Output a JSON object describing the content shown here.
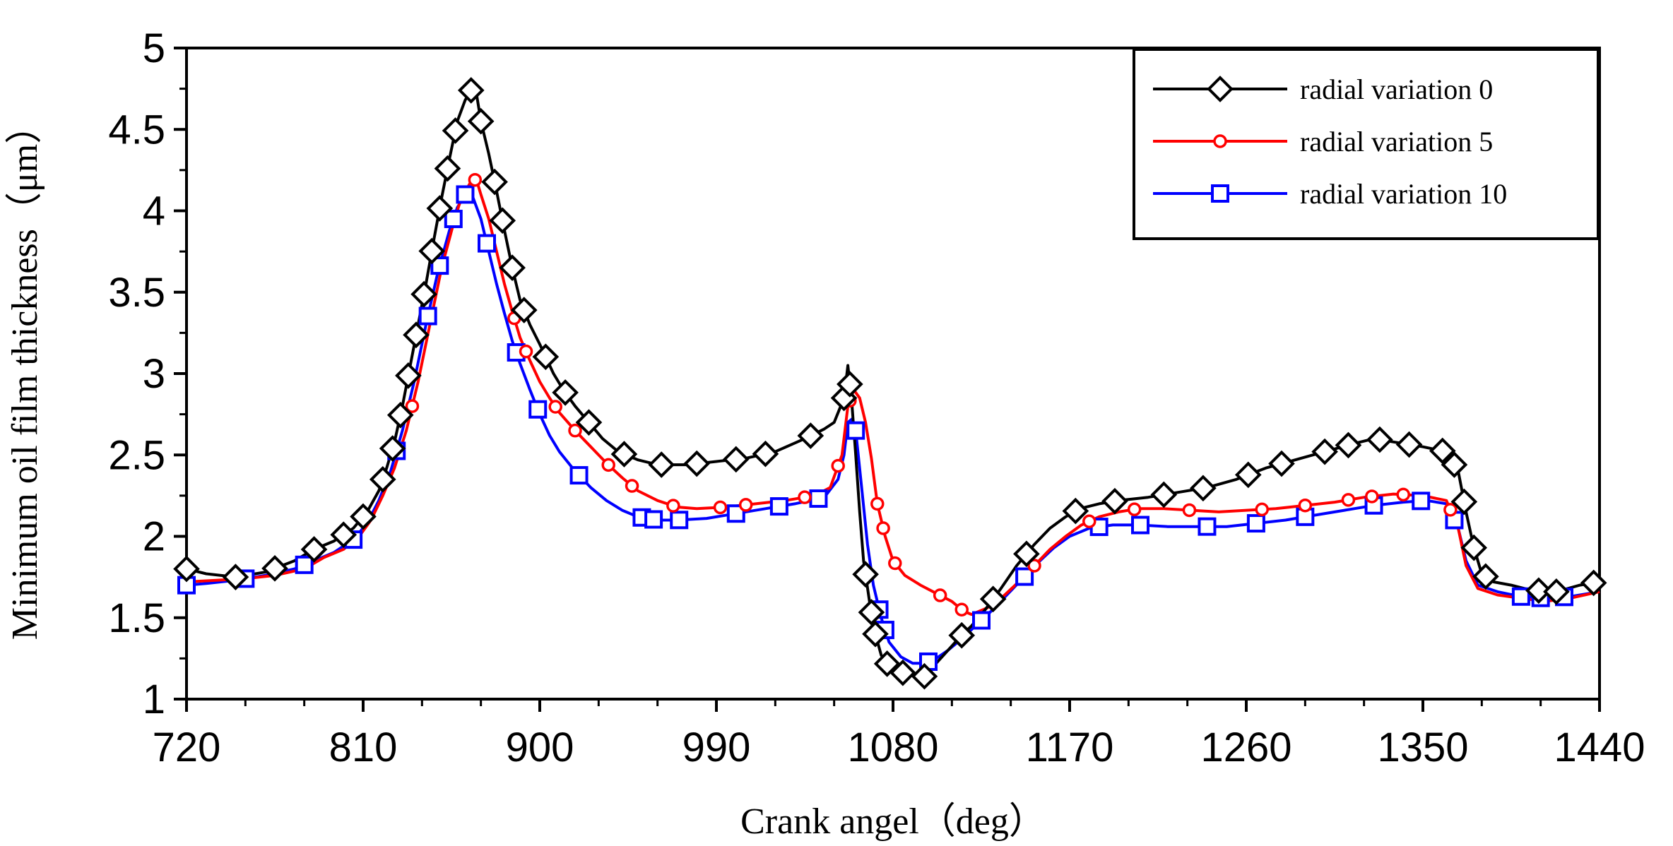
{
  "chart_data": {
    "type": "line",
    "title": "",
    "xlabel": "Crank angel（deg）",
    "ylabel": "Minimum oil film thickness（μm）",
    "xlim": [
      720,
      1440
    ],
    "ylim": [
      1,
      5
    ],
    "xticks": [
      720,
      810,
      900,
      990,
      1080,
      1170,
      1260,
      1350,
      1440
    ],
    "yticks": [
      1,
      1.5,
      2,
      2.5,
      3,
      3.5,
      4,
      4.5,
      5
    ],
    "xtick_labels": [
      "720",
      "810",
      "900",
      "990",
      "1080",
      "1170",
      "1260",
      "1350",
      "1440"
    ],
    "ytick_labels": [
      "1",
      "1.5",
      "2",
      "2.5",
      "3",
      "3.5",
      "4",
      "4.5",
      "5"
    ],
    "grid": false,
    "legend_position": "top-right",
    "series": [
      {
        "name": "radial variation 0",
        "color": "#000000",
        "marker": "diamond",
        "x": [
          720,
          730,
          745,
          760,
          775,
          785,
          795,
          805,
          812,
          818,
          822,
          826,
          830,
          834,
          838,
          842,
          846,
          850,
          854,
          858,
          862,
          866,
          868,
          870,
          874,
          878,
          882,
          886,
          890,
          895,
          900,
          907,
          912,
          918,
          925,
          932,
          940,
          950,
          960,
          975,
          990,
          1005,
          1020,
          1035,
          1045,
          1050,
          1055,
          1057,
          1059,
          1061,
          1063,
          1065,
          1068,
          1071,
          1074,
          1078,
          1083,
          1088,
          1094,
          1098,
          1102,
          1108,
          1114,
          1120,
          1127,
          1135,
          1143,
          1152,
          1160,
          1168,
          1175,
          1185,
          1195,
          1210,
          1225,
          1240,
          1255,
          1270,
          1285,
          1300,
          1315,
          1325,
          1335,
          1350,
          1362,
          1368,
          1372,
          1376,
          1380,
          1386,
          1395,
          1405,
          1418,
          1430,
          1440
        ],
        "values": [
          1.8,
          1.77,
          1.75,
          1.78,
          1.85,
          1.92,
          1.97,
          2.05,
          2.15,
          2.28,
          2.42,
          2.58,
          2.8,
          3.05,
          3.3,
          3.55,
          3.82,
          4.08,
          4.32,
          4.55,
          4.68,
          4.76,
          4.7,
          4.55,
          4.35,
          4.12,
          3.88,
          3.65,
          3.45,
          3.3,
          3.18,
          3.0,
          2.9,
          2.8,
          2.7,
          2.6,
          2.52,
          2.47,
          2.44,
          2.44,
          2.46,
          2.48,
          2.52,
          2.6,
          2.66,
          2.7,
          2.85,
          3.05,
          2.82,
          2.5,
          2.15,
          1.85,
          1.6,
          1.4,
          1.27,
          1.2,
          1.17,
          1.15,
          1.13,
          1.15,
          1.22,
          1.3,
          1.38,
          1.45,
          1.55,
          1.68,
          1.82,
          1.95,
          2.05,
          2.12,
          2.17,
          2.2,
          2.22,
          2.24,
          2.27,
          2.3,
          2.35,
          2.42,
          2.47,
          2.52,
          2.57,
          2.6,
          2.58,
          2.55,
          2.52,
          2.4,
          2.15,
          1.93,
          1.77,
          1.72,
          1.7,
          1.67,
          1.66,
          1.7,
          1.72
        ]
      },
      {
        "name": "radial variation 5",
        "color": "#ff0000",
        "marker": "circle",
        "x": [
          720,
          735,
          750,
          765,
          780,
          790,
          800,
          808,
          814,
          820,
          826,
          832,
          838,
          844,
          850,
          856,
          860,
          864,
          866,
          868,
          870,
          874,
          878,
          882,
          886,
          890,
          895,
          900,
          905,
          910,
          918,
          926,
          934,
          942,
          950,
          960,
          970,
          980,
          995,
          1010,
          1025,
          1040,
          1048,
          1054,
          1057,
          1060,
          1063,
          1066,
          1069,
          1072,
          1076,
          1080,
          1086,
          1094,
          1102,
          1110,
          1116,
          1120,
          1128,
          1136,
          1144,
          1152,
          1160,
          1168,
          1176,
          1185,
          1195,
          1205,
          1218,
          1232,
          1246,
          1260,
          1275,
          1290,
          1305,
          1320,
          1335,
          1350,
          1362,
          1368,
          1372,
          1378,
          1388,
          1400,
          1412,
          1425,
          1440
        ],
        "values": [
          1.72,
          1.73,
          1.74,
          1.76,
          1.8,
          1.87,
          1.92,
          2.0,
          2.1,
          2.25,
          2.42,
          2.65,
          2.95,
          3.3,
          3.65,
          3.92,
          4.08,
          4.16,
          4.2,
          4.18,
          4.1,
          3.95,
          3.75,
          3.55,
          3.38,
          3.22,
          3.08,
          2.95,
          2.85,
          2.76,
          2.65,
          2.55,
          2.45,
          2.36,
          2.28,
          2.22,
          2.18,
          2.17,
          2.18,
          2.2,
          2.22,
          2.25,
          2.3,
          2.5,
          2.8,
          2.9,
          2.85,
          2.7,
          2.48,
          2.2,
          2.0,
          1.85,
          1.76,
          1.7,
          1.65,
          1.6,
          1.54,
          1.52,
          1.56,
          1.63,
          1.72,
          1.82,
          1.92,
          2.0,
          2.07,
          2.12,
          2.15,
          2.17,
          2.17,
          2.16,
          2.15,
          2.16,
          2.17,
          2.19,
          2.21,
          2.24,
          2.26,
          2.25,
          2.22,
          2.05,
          1.82,
          1.68,
          1.64,
          1.62,
          1.6,
          1.62,
          1.66
        ]
      },
      {
        "name": "radial variation 10",
        "color": "#0000ff",
        "marker": "square",
        "x": [
          720,
          730,
          745,
          760,
          775,
          785,
          795,
          805,
          812,
          818,
          824,
          830,
          836,
          842,
          848,
          854,
          858,
          862,
          864,
          866,
          870,
          874,
          878,
          882,
          886,
          890,
          895,
          900,
          905,
          910,
          918,
          926,
          934,
          942,
          950,
          960,
          970,
          985,
          1000,
          1015,
          1030,
          1045,
          1052,
          1055,
          1057,
          1059,
          1061,
          1064,
          1067,
          1070,
          1074,
          1078,
          1084,
          1090,
          1096,
          1102,
          1108,
          1115,
          1122,
          1130,
          1138,
          1146,
          1154,
          1162,
          1170,
          1180,
          1192,
          1205,
          1220,
          1235,
          1250,
          1265,
          1280,
          1295,
          1310,
          1325,
          1340,
          1352,
          1362,
          1368,
          1372,
          1378,
          1388,
          1400,
          1412,
          1425,
          1440
        ],
        "values": [
          1.7,
          1.71,
          1.73,
          1.76,
          1.8,
          1.85,
          1.9,
          1.98,
          2.08,
          2.22,
          2.4,
          2.65,
          2.95,
          3.3,
          3.62,
          3.88,
          4.02,
          4.1,
          4.11,
          4.08,
          3.95,
          3.75,
          3.55,
          3.37,
          3.2,
          3.06,
          2.9,
          2.75,
          2.62,
          2.52,
          2.4,
          2.3,
          2.22,
          2.16,
          2.12,
          2.1,
          2.1,
          2.11,
          2.14,
          2.17,
          2.2,
          2.24,
          2.35,
          2.5,
          2.7,
          2.72,
          2.65,
          2.3,
          1.95,
          1.7,
          1.5,
          1.35,
          1.26,
          1.22,
          1.22,
          1.25,
          1.3,
          1.37,
          1.45,
          1.54,
          1.64,
          1.74,
          1.84,
          1.93,
          2.0,
          2.05,
          2.07,
          2.07,
          2.06,
          2.06,
          2.06,
          2.08,
          2.1,
          2.13,
          2.16,
          2.19,
          2.21,
          2.22,
          2.2,
          2.05,
          1.85,
          1.7,
          1.66,
          1.63,
          1.62,
          1.63,
          1.66
        ]
      }
    ],
    "marker_x": {
      "radial variation 0": [
        720,
        745,
        765,
        785,
        800,
        810,
        820,
        825,
        829,
        833,
        837,
        841,
        845,
        849,
        853,
        857,
        865,
        870,
        877,
        881,
        886,
        892,
        903,
        913,
        925,
        943,
        962,
        980,
        1000,
        1015,
        1038,
        1055,
        1058,
        1066,
        1069,
        1071,
        1077,
        1085,
        1096,
        1115,
        1131,
        1148,
        1173,
        1193,
        1218,
        1238,
        1261,
        1278,
        1300,
        1312,
        1328,
        1343,
        1360,
        1366,
        1371,
        1376,
        1382,
        1409,
        1418,
        1437
      ],
      "radial variation 5": [
        835,
        867,
        887,
        893,
        908,
        918,
        935,
        947,
        968,
        992,
        1005,
        1035,
        1052,
        1058,
        1072,
        1075,
        1081,
        1104,
        1115,
        1152,
        1180,
        1203,
        1231,
        1268,
        1290,
        1312,
        1324,
        1340,
        1364
      ],
      "radial variation 10": [
        720,
        750,
        780,
        805,
        827,
        843,
        849,
        856,
        862,
        873,
        888,
        899,
        920,
        952,
        958,
        971,
        1000,
        1022,
        1042,
        1061,
        1073,
        1076,
        1098,
        1125,
        1147,
        1185,
        1206,
        1240,
        1265,
        1290,
        1325,
        1349,
        1366,
        1400,
        1410,
        1422
      ]
    }
  }
}
